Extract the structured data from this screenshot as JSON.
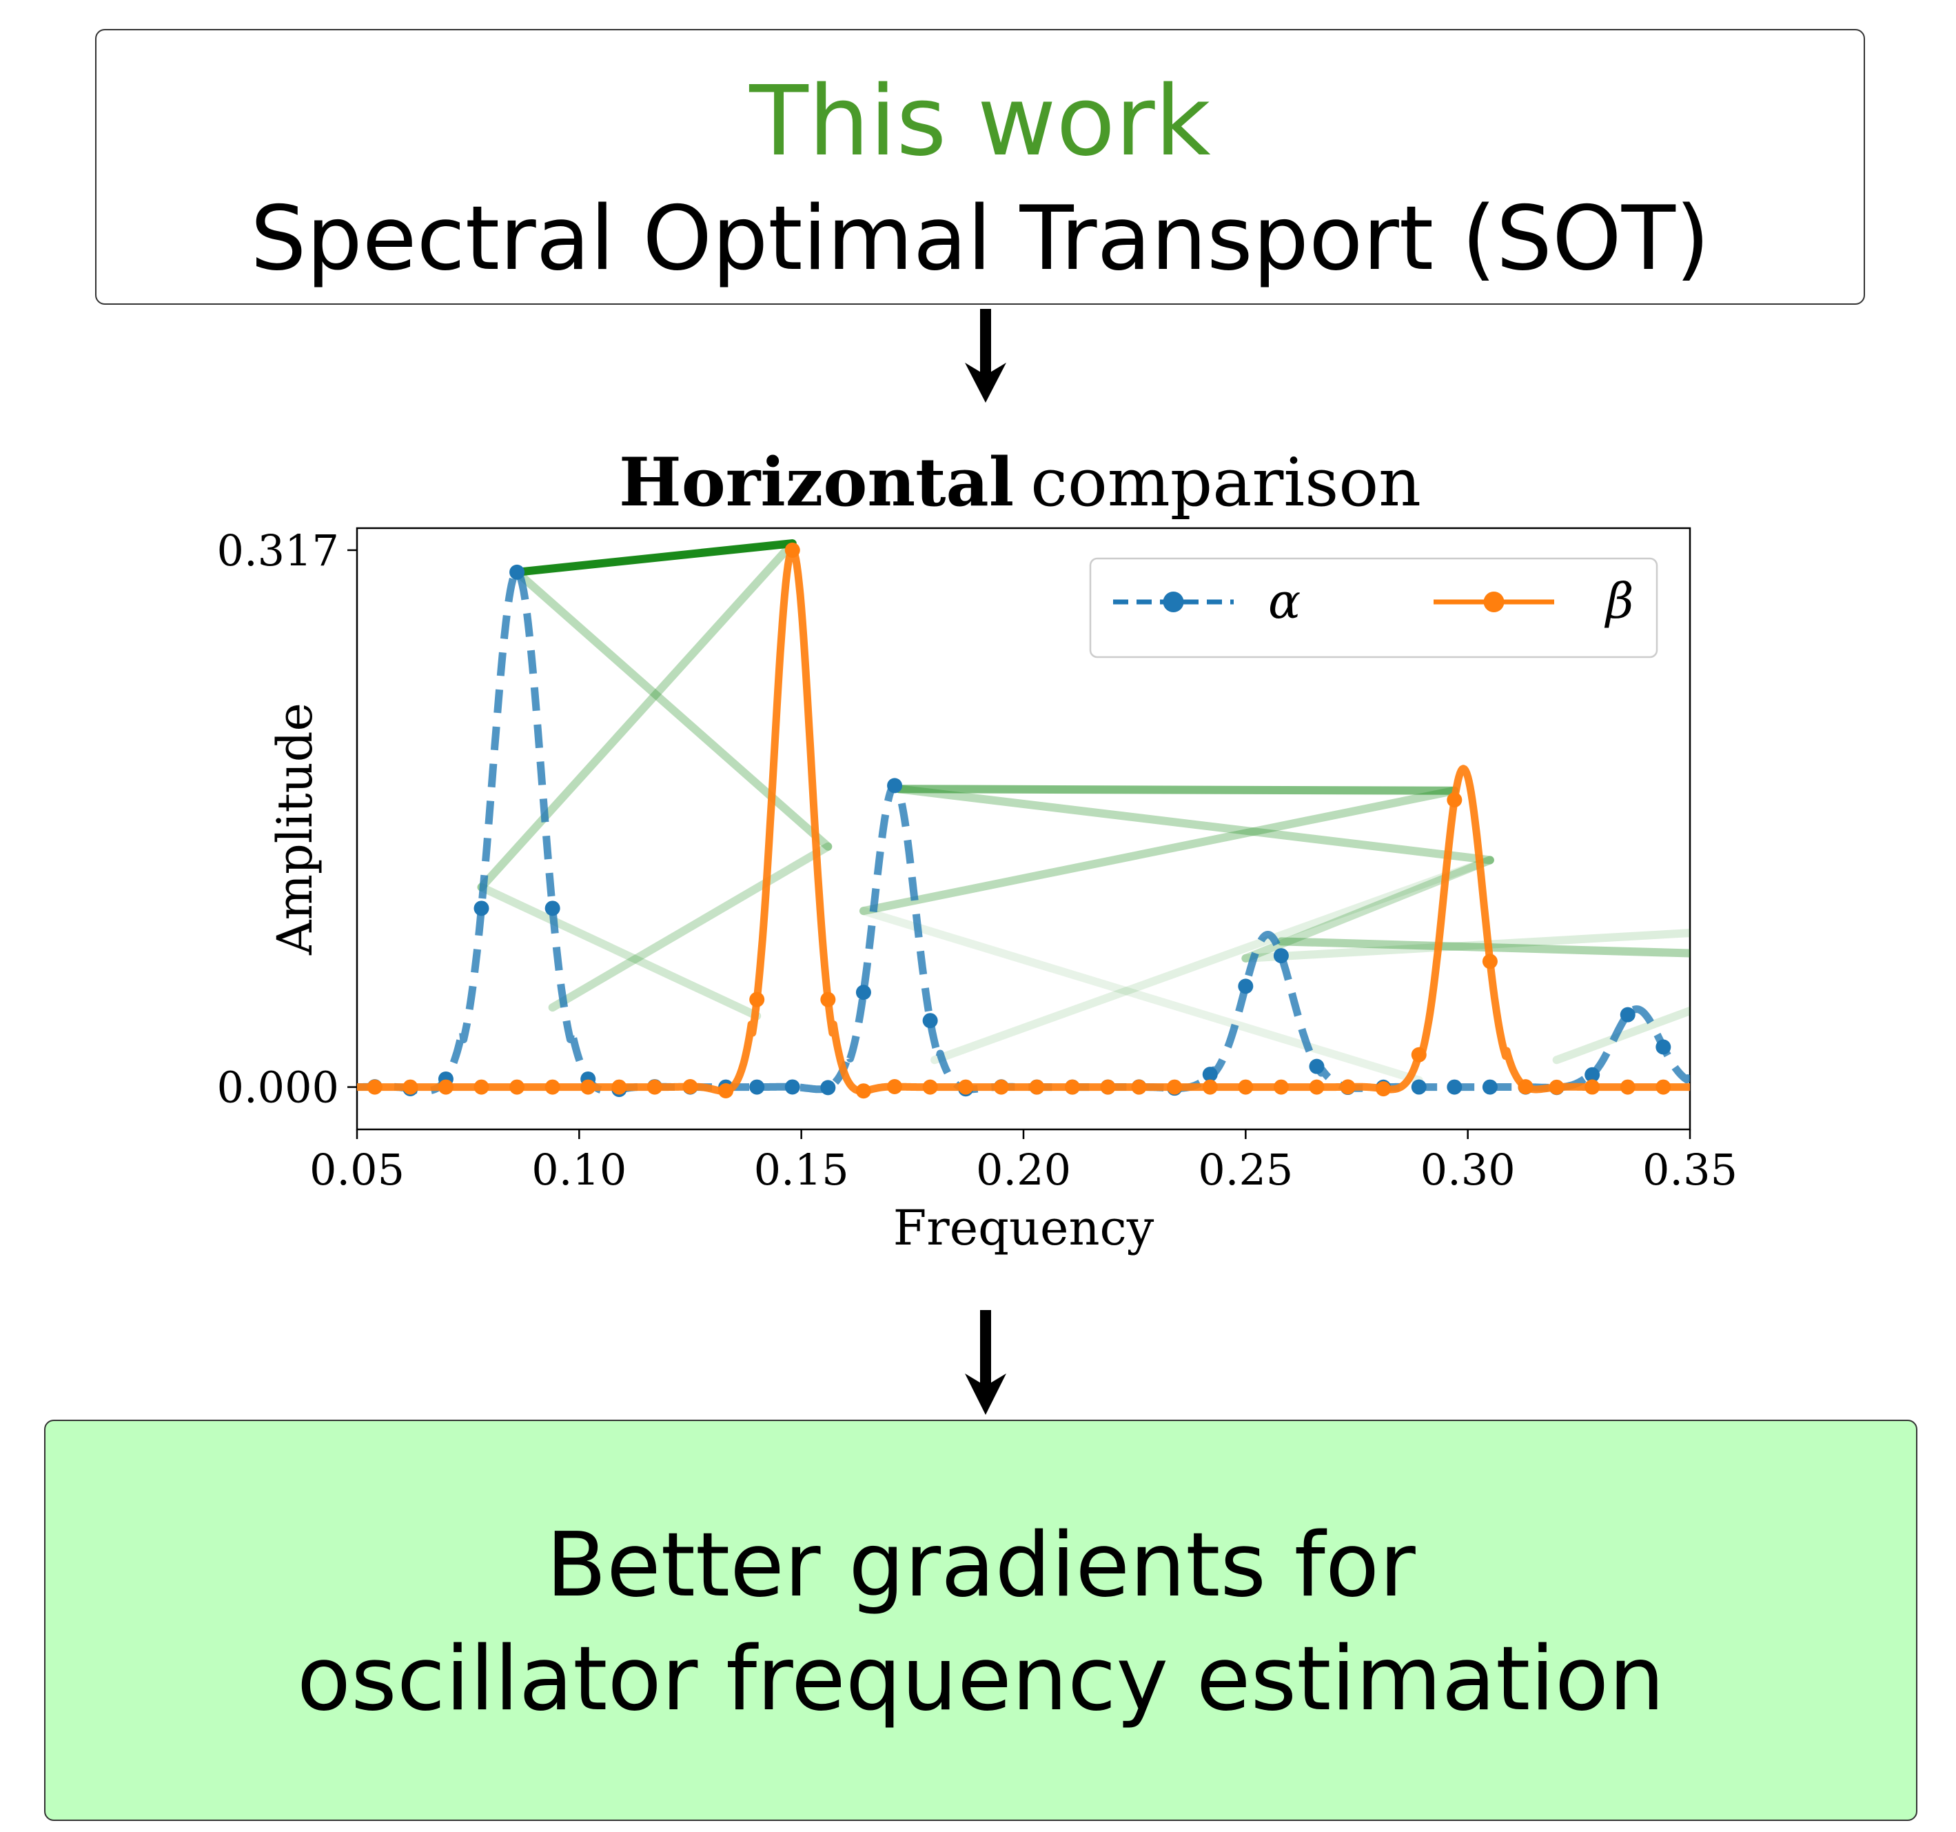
{
  "header_box": {
    "line1": "This work",
    "line2": "Spectral Optimal Transport (SOT)",
    "line1_color": "#4a9a2a"
  },
  "footer_box": {
    "line1": "Better gradients for",
    "line2": "oscillator frequency estimation",
    "background": "#bfffbf"
  },
  "chart_data": {
    "type": "line",
    "title_bold": "Horizontal",
    "title_rest": "comparison",
    "xlabel": "Frequency",
    "ylabel": "Amplitude",
    "xlim": [
      0.05,
      0.35
    ],
    "ylim": [
      -0.025,
      0.33
    ],
    "xticks": [
      "0.05",
      "0.10",
      "0.15",
      "0.20",
      "0.25",
      "0.30",
      "0.35"
    ],
    "yticks": [
      "0.000",
      "0.317"
    ],
    "legend": {
      "position": "top-right",
      "entries": [
        "α",
        "β"
      ]
    },
    "series": [
      {
        "name": "α",
        "color": "#1f77b4",
        "style": "dashed",
        "peaks": [
          [
            0.086,
            0.304,
            0.0055
          ],
          [
            0.171,
            0.178,
            0.0046
          ],
          [
            0.255,
            0.09,
            0.0055
          ],
          [
            0.338,
            0.046,
            0.0052
          ]
        ],
        "markers_x": [
          0.054,
          0.062,
          0.07,
          0.078,
          0.086,
          0.094,
          0.102,
          0.109,
          0.117,
          0.125,
          0.133,
          0.14,
          0.148,
          0.156,
          0.164,
          0.171,
          0.179,
          0.187,
          0.195,
          0.203,
          0.211,
          0.219,
          0.226,
          0.234,
          0.242,
          0.25,
          0.258,
          0.266,
          0.273,
          0.281,
          0.289,
          0.297,
          0.305,
          0.313,
          0.32,
          0.328,
          0.336,
          0.344
        ]
      },
      {
        "name": "β",
        "color": "#ff7f0e",
        "style": "solid",
        "peaks": [
          [
            0.148,
            0.317,
            0.0042
          ],
          [
            0.299,
            0.188,
            0.0044
          ]
        ],
        "markers_x": [
          0.054,
          0.062,
          0.07,
          0.078,
          0.086,
          0.094,
          0.102,
          0.109,
          0.117,
          0.125,
          0.133,
          0.14,
          0.148,
          0.156,
          0.164,
          0.171,
          0.179,
          0.187,
          0.195,
          0.203,
          0.211,
          0.219,
          0.226,
          0.234,
          0.242,
          0.25,
          0.258,
          0.266,
          0.273,
          0.281,
          0.289,
          0.297,
          0.305,
          0.313,
          0.32,
          0.328,
          0.336,
          0.344
        ]
      }
    ],
    "transport_lines": {
      "color": "#1a8a1a",
      "segments": [
        [
          0.086,
          0.304,
          0.148,
          0.321,
          1.0
        ],
        [
          0.086,
          0.304,
          0.156,
          0.142,
          0.3
        ],
        [
          0.078,
          0.118,
          0.148,
          0.321,
          0.3
        ],
        [
          0.078,
          0.118,
          0.14,
          0.042,
          0.2
        ],
        [
          0.094,
          0.047,
          0.156,
          0.142,
          0.25
        ],
        [
          0.172,
          0.176,
          0.297,
          0.175,
          0.55
        ],
        [
          0.172,
          0.176,
          0.305,
          0.134,
          0.3
        ],
        [
          0.164,
          0.104,
          0.297,
          0.175,
          0.3
        ],
        [
          0.164,
          0.104,
          0.289,
          0.004,
          0.1
        ],
        [
          0.258,
          0.086,
          0.35,
          0.079,
          0.35
        ],
        [
          0.25,
          0.076,
          0.305,
          0.134,
          0.25
        ],
        [
          0.25,
          0.076,
          0.35,
          0.091,
          0.15
        ],
        [
          0.18,
          0.016,
          0.305,
          0.134,
          0.12
        ],
        [
          0.32,
          0.016,
          0.35,
          0.045,
          0.15
        ]
      ]
    }
  }
}
